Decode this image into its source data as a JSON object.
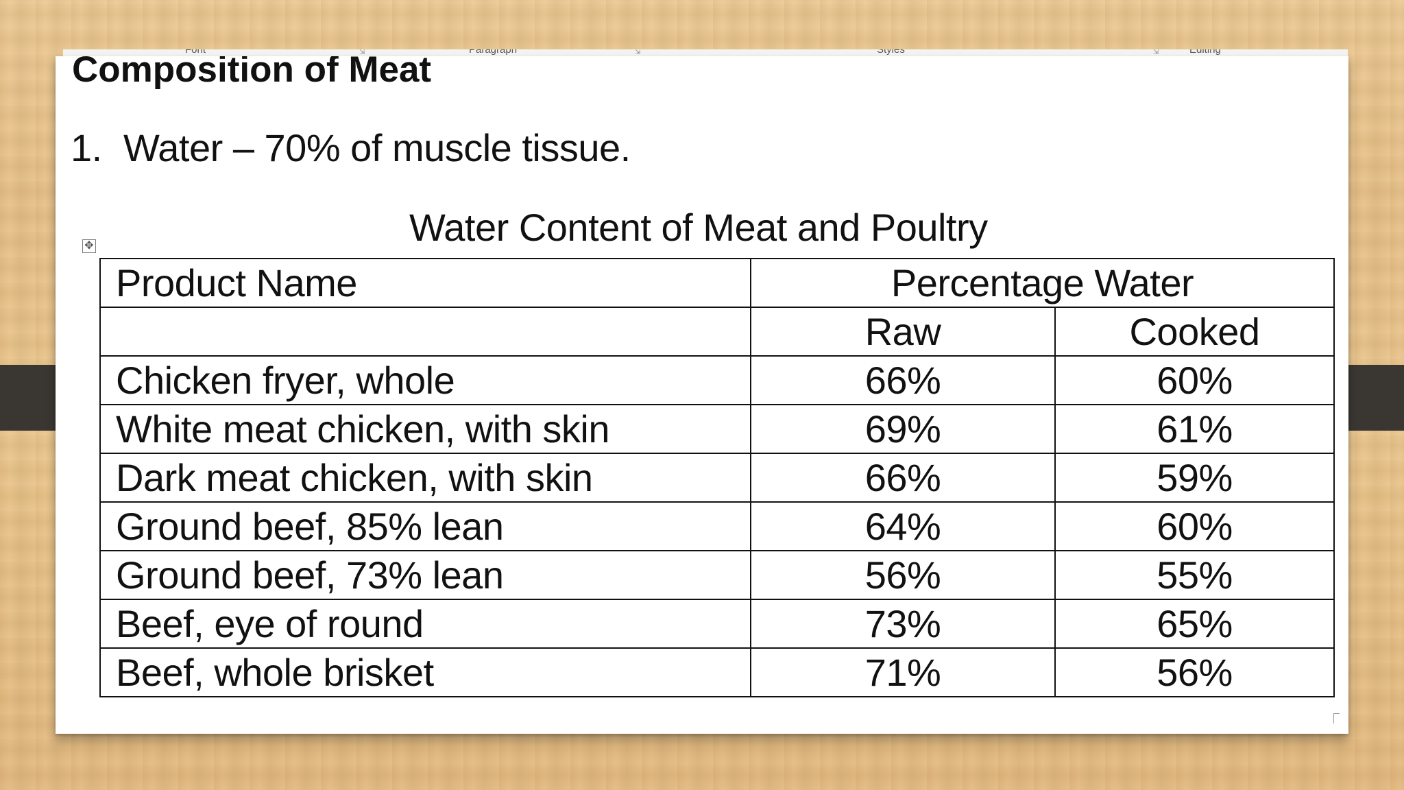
{
  "ribbon": {
    "groups": [
      "Font",
      "Paragraph",
      "Styles",
      "Editing"
    ]
  },
  "document": {
    "heading": "Composition of Meat",
    "list_item": {
      "number": "1.",
      "text": "Water – 70% of muscle tissue."
    },
    "table_title": "Water Content of Meat and Poultry",
    "table": {
      "header_name": "Product Name",
      "header_group": "Percentage Water",
      "sub_headers": [
        "Raw",
        "Cooked"
      ],
      "rows": [
        {
          "name": "Chicken fryer, whole",
          "raw": "66%",
          "cooked": "60%"
        },
        {
          "name": "White meat chicken, with skin",
          "raw": "69%",
          "cooked": "61%"
        },
        {
          "name": "Dark meat chicken, with skin",
          "raw": "66%",
          "cooked": "59%"
        },
        {
          "name": "Ground beef, 85% lean",
          "raw": "64%",
          "cooked": "60%"
        },
        {
          "name": "Ground beef, 73% lean",
          "raw": "56%",
          "cooked": "55%"
        },
        {
          "name": "Beef, eye of round",
          "raw": "73%",
          "cooked": "65%"
        },
        {
          "name": "Beef, whole brisket",
          "raw": "71%",
          "cooked": "56%"
        }
      ]
    }
  }
}
